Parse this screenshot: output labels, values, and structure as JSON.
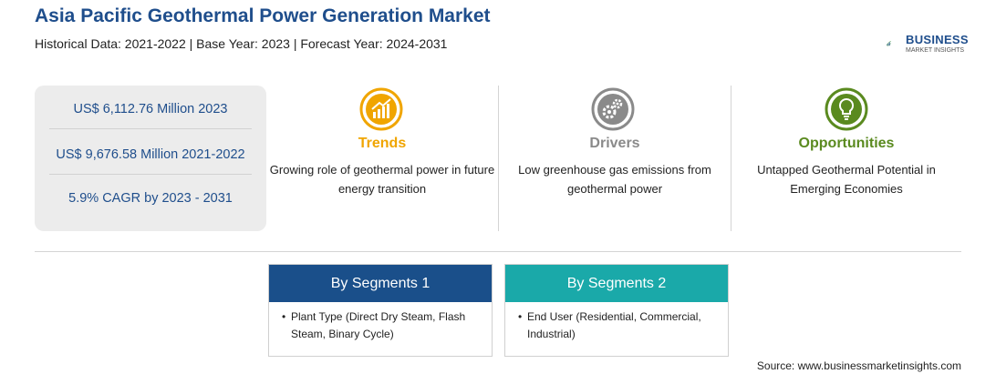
{
  "header": {
    "title": "Asia Pacific Geothermal Power Generation Market",
    "subtitle": "Historical Data: 2021-2022 | Base Year: 2023 | Forecast Year: 2024-2031"
  },
  "logo": {
    "name": "BUSINESS",
    "tagline": "MARKET INSIGHTS",
    "color": "#1f4e8c",
    "accent": "#3a9a3a"
  },
  "stats": [
    {
      "text": "US$ 6,112.76 Million 2023"
    },
    {
      "text": "US$ 9,676.58 Million 2021-2022"
    },
    {
      "text": "5.9% CAGR by 2023 - 2031"
    }
  ],
  "columns": [
    {
      "title": "Trends",
      "icon": "trend-chart-icon",
      "color": "#f0a500",
      "text": "Growing role of geothermal power in future energy transition"
    },
    {
      "title": "Drivers",
      "icon": "gears-icon",
      "color": "#8a8a8a",
      "text": "Low greenhouse gas emissions from geothermal power"
    },
    {
      "title": "Opportunities",
      "icon": "lightbulb-icon",
      "color": "#5a8a1f",
      "text": "Untapped Geothermal Potential in Emerging Economies"
    }
  ],
  "segments": [
    {
      "title": "By Segments 1",
      "color": "#1a4f8a",
      "items": [
        "Plant Type (Direct Dry Steam, Flash Steam, Binary Cycle)"
      ]
    },
    {
      "title": "By Segments 2",
      "color": "#1aa9a9",
      "items": [
        "End User (Residential, Commercial, Industrial)"
      ]
    }
  ],
  "source": "Source: www.businessmarketinsights.com"
}
